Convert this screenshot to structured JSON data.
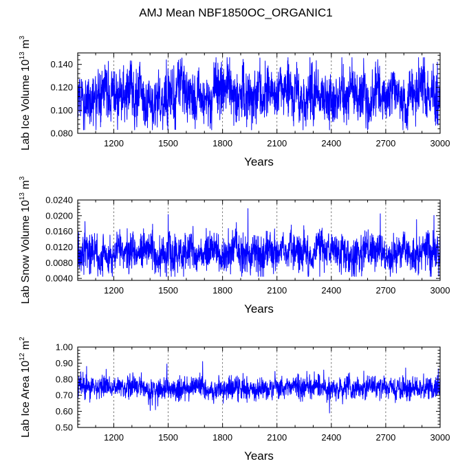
{
  "figure_title": "AMJ Mean NBF1850OC_ORGANIC1",
  "colors": {
    "series": "#0000ff",
    "axis": "#000000",
    "grid": "#555555"
  },
  "chart_data": [
    {
      "type": "line",
      "name": "panel-ice-volume",
      "xlabel": "Years",
      "ylabel": {
        "main": "Lab Ice Volume 10",
        "exp": "13",
        "unit": " m",
        "unit_exp": "3"
      },
      "xlim": [
        1001,
        3000
      ],
      "ylim": [
        0.08,
        0.15
      ],
      "x_ticks": [
        1200,
        1500,
        1800,
        2100,
        2400,
        2700,
        3000
      ],
      "x_tick_labels": [
        "1200",
        "1500",
        "1800",
        "2100",
        "2400",
        "2700",
        "3000"
      ],
      "y_ticks": [
        0.08,
        0.1,
        0.12,
        0.14
      ],
      "y_tick_labels": [
        "0.080",
        "0.100",
        "0.120",
        "0.140"
      ],
      "grid_x": [
        1200,
        1500,
        1800,
        2100,
        2400,
        2700
      ],
      "series": [
        {
          "name": "Lab Ice Volume",
          "x_start": 1001,
          "x_step": 1,
          "n_points": 2000,
          "baseline_value": 0.113,
          "spread": 0.011,
          "smooth_component": 0.006,
          "min_value": 0.083,
          "max_value": 0.146,
          "notable_points": [
            {
              "x": 1490,
              "y": 0.144
            },
            {
              "x": 1495,
              "y": 0.087
            },
            {
              "x": 2035,
              "y": 0.143
            },
            {
              "x": 2390,
              "y": 0.083
            },
            {
              "x": 2985,
              "y": 0.142
            },
            {
              "x": 2975,
              "y": 0.087
            }
          ]
        }
      ]
    },
    {
      "type": "line",
      "name": "panel-snow-volume",
      "xlabel": "Years",
      "ylabel": {
        "main": "Lab Snow Volume 10",
        "exp": "13",
        "unit": " m",
        "unit_exp": "3"
      },
      "xlim": [
        1001,
        3000
      ],
      "ylim": [
        0.0035,
        0.024
      ],
      "x_ticks": [
        1200,
        1500,
        1800,
        2100,
        2400,
        2700,
        3000
      ],
      "x_tick_labels": [
        "1200",
        "1500",
        "1800",
        "2100",
        "2400",
        "2700",
        "3000"
      ],
      "y_ticks": [
        0.004,
        0.008,
        0.012,
        0.016,
        0.02,
        0.024
      ],
      "y_tick_labels": [
        "0.0040",
        "0.0080",
        "0.0120",
        "0.0160",
        "0.0200",
        "0.0240"
      ],
      "grid_x": [
        1200,
        1500,
        1800,
        2100,
        2400,
        2700
      ],
      "series": [
        {
          "name": "Lab Snow Volume",
          "x_start": 1001,
          "x_step": 1,
          "n_points": 2000,
          "baseline_value": 0.0105,
          "spread": 0.0023,
          "smooth_component": 0.0012,
          "min_value": 0.0045,
          "max_value": 0.0218,
          "notable_points": [
            {
              "x": 1500,
              "y": 0.0203
            },
            {
              "x": 1940,
              "y": 0.0218
            },
            {
              "x": 2670,
              "y": 0.0205
            },
            {
              "x": 2870,
              "y": 0.019
            },
            {
              "x": 1035,
              "y": 0.005
            }
          ]
        }
      ]
    },
    {
      "type": "line",
      "name": "panel-ice-area",
      "xlabel": "Years",
      "ylabel": {
        "main": "Lab Ice Area 10",
        "exp": "12",
        "unit": " m",
        "unit_exp": "2"
      },
      "xlim": [
        1001,
        3000
      ],
      "ylim": [
        0.5,
        1.0
      ],
      "x_ticks": [
        1200,
        1500,
        1800,
        2100,
        2400,
        2700,
        3000
      ],
      "x_tick_labels": [
        "1200",
        "1500",
        "1800",
        "2100",
        "2400",
        "2700",
        "3000"
      ],
      "y_ticks": [
        0.5,
        0.6,
        0.7,
        0.8,
        0.9,
        1.0
      ],
      "y_tick_labels": [
        "0.50",
        "0.60",
        "0.70",
        "0.80",
        "0.90",
        "1.00"
      ],
      "grid_x": [
        1200,
        1500,
        1800,
        2100,
        2400,
        2700
      ],
      "series": [
        {
          "name": "Lab Ice Area",
          "x_start": 1001,
          "x_step": 1,
          "n_points": 2000,
          "baseline_value": 0.745,
          "spread": 0.033,
          "smooth_component": 0.015,
          "min_value": 0.59,
          "max_value": 0.91,
          "notable_points": [
            {
              "x": 1690,
              "y": 0.91
            },
            {
              "x": 1050,
              "y": 0.88
            },
            {
              "x": 2810,
              "y": 0.87
            },
            {
              "x": 2990,
              "y": 0.865
            },
            {
              "x": 2390,
              "y": 0.59
            },
            {
              "x": 1430,
              "y": 0.61
            }
          ]
        }
      ]
    }
  ]
}
